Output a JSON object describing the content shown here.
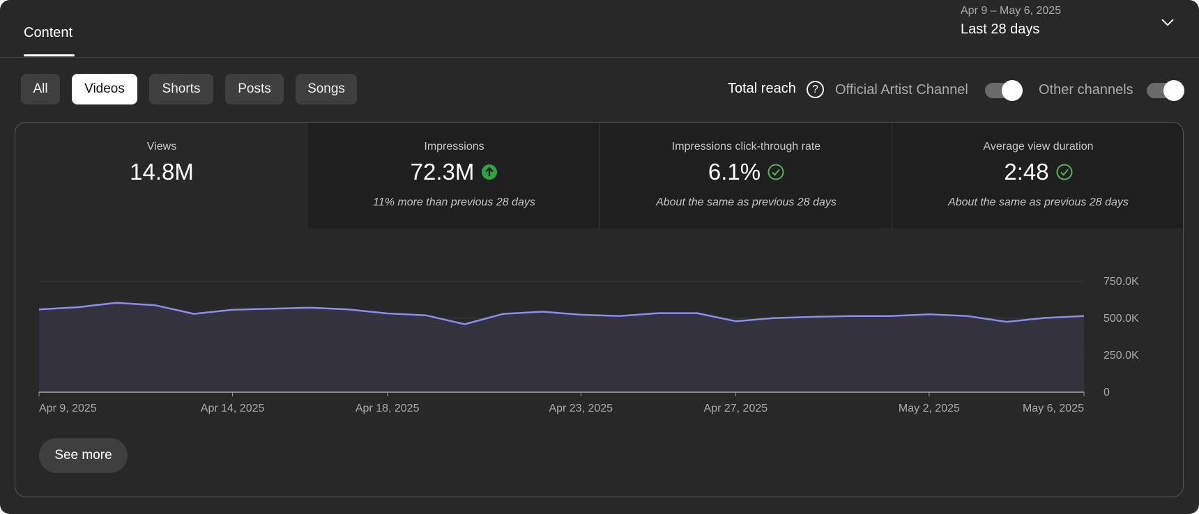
{
  "header": {
    "tab_label": "Content",
    "date_range": "Apr 9 – May 6, 2025",
    "period_label": "Last 28 days"
  },
  "filters": {
    "chips": [
      "All",
      "Videos",
      "Shorts",
      "Posts",
      "Songs"
    ],
    "selected": "Videos"
  },
  "toggles": {
    "total_reach_label": "Total reach",
    "help_glyph": "?",
    "official_artist_channel_label": "Official Artist Channel",
    "official_artist_channel_on": true,
    "other_channels_label": "Other channels",
    "other_channels_on": true
  },
  "metrics": [
    {
      "title": "Views",
      "value": "14.8M",
      "note": ""
    },
    {
      "title": "Impressions",
      "value": "72.3M",
      "note": "11% more than previous 28 days",
      "status_icon": "arrow-up-circle-icon"
    },
    {
      "title": "Impressions click-through rate",
      "value": "6.1%",
      "note": "About the same as previous 28 days",
      "status_icon": "check-circle-icon"
    },
    {
      "title": "Average view duration",
      "value": "2:48",
      "note": "About the same as previous 28 days",
      "status_icon": "check-circle-icon"
    }
  ],
  "colors": {
    "line": "#8f8cf0",
    "area": "#34333f",
    "up_badge": "#2ba640",
    "check": "#58b05a"
  },
  "chart_data": {
    "type": "area",
    "x": [
      "Apr 9, 2025",
      "Apr 10, 2025",
      "Apr 11, 2025",
      "Apr 12, 2025",
      "Apr 13, 2025",
      "Apr 14, 2025",
      "Apr 15, 2025",
      "Apr 16, 2025",
      "Apr 17, 2025",
      "Apr 18, 2025",
      "Apr 19, 2025",
      "Apr 20, 2025",
      "Apr 21, 2025",
      "Apr 22, 2025",
      "Apr 23, 2025",
      "Apr 24, 2025",
      "Apr 25, 2025",
      "Apr 26, 2025",
      "Apr 27, 2025",
      "Apr 28, 2025",
      "Apr 29, 2025",
      "Apr 30, 2025",
      "May 1, 2025",
      "May 2, 2025",
      "May 3, 2025",
      "May 4, 2025",
      "May 5, 2025",
      "May 6, 2025"
    ],
    "series": [
      {
        "values": [
          560000,
          575000,
          605000,
          588000,
          530000,
          558000,
          565000,
          572000,
          560000,
          533000,
          520000,
          460000,
          530000,
          545000,
          524000,
          515000,
          535000,
          535000,
          480000,
          502000,
          510000,
          515000,
          515000,
          527000,
          515000,
          476000,
          503000,
          515000
        ]
      }
    ],
    "x_tick_labels": [
      "Apr 9, 2025",
      "Apr 14, 2025",
      "Apr 18, 2025",
      "Apr 23, 2025",
      "Apr 27, 2025",
      "May 2, 2025",
      "May 6, 2025"
    ],
    "y_tick_labels": [
      "0",
      "250.0K",
      "500.0K",
      "750.0K"
    ],
    "y_ticks": [
      0,
      250000,
      500000,
      750000
    ],
    "ylim": [
      0,
      750000
    ],
    "y_axis_side": "right",
    "grid": true,
    "title": "",
    "xlabel": "",
    "ylabel": ""
  },
  "actions": {
    "see_more_label": "See more"
  }
}
